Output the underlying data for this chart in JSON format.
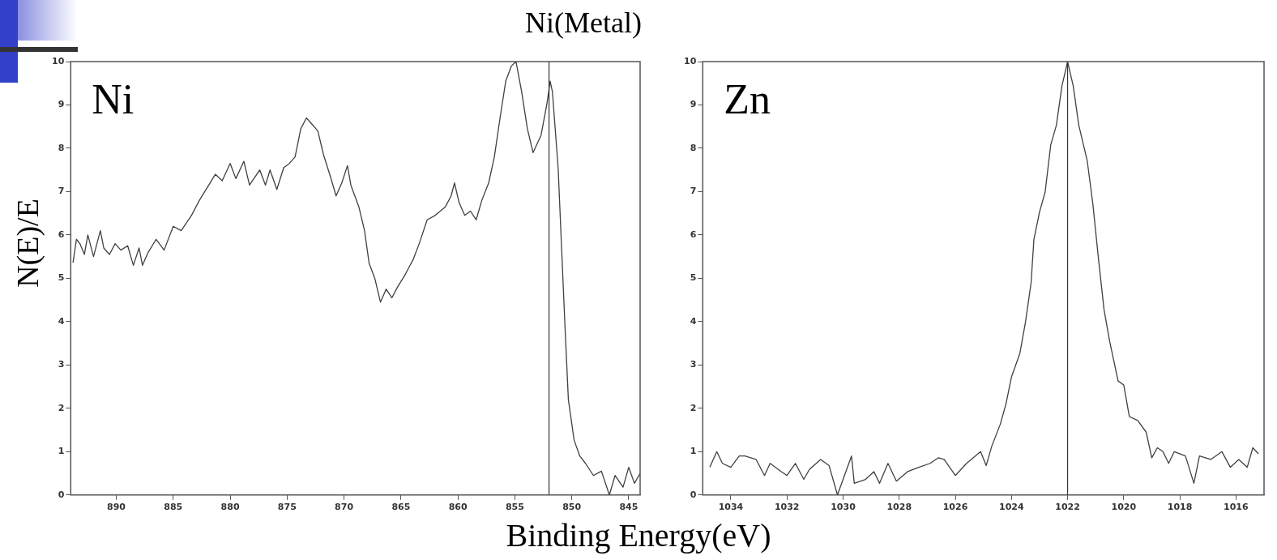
{
  "chart_data": [
    {
      "type": "line",
      "title": "Ni",
      "xlabel": "Binding Energy(eV)",
      "ylabel": "N(E)/E",
      "annotations": [
        "Ni(Metal)"
      ],
      "xlim": [
        894,
        844
      ],
      "xticks": [
        890,
        885,
        880,
        875,
        870,
        865,
        860,
        855,
        850,
        845
      ],
      "ylim": [
        0,
        10
      ],
      "yticks": [
        0,
        1,
        2,
        3,
        4,
        5,
        6,
        7,
        8,
        9,
        10
      ],
      "grid": false,
      "legend": false,
      "marker": "none",
      "ref_lines": [
        {
          "axis": "x",
          "value": 852,
          "color": "#333333"
        }
      ],
      "series": [
        {
          "color": "#404040",
          "x": [
            893.8,
            893.5,
            893.2,
            892.8,
            892.5,
            892.0,
            891.4,
            891.1,
            890.6,
            890.1,
            889.6,
            889.0,
            888.5,
            888.0,
            887.7,
            887.2,
            886.5,
            885.8,
            885.0,
            884.3,
            883.4,
            882.7,
            882.0,
            881.3,
            880.7,
            880.0,
            879.5,
            878.8,
            878.3,
            877.4,
            876.9,
            876.5,
            875.9,
            875.3,
            874.8,
            874.3,
            873.8,
            873.3,
            872.8,
            872.3,
            871.8,
            871.2,
            870.7,
            870.2,
            869.7,
            869.4,
            868.7,
            868.2,
            867.8,
            867.3,
            866.8,
            866.3,
            865.8,
            865.3,
            864.6,
            863.9,
            863.4,
            862.7,
            862.0,
            861.1,
            860.6,
            860.3,
            859.9,
            859.4,
            858.9,
            858.4,
            857.9,
            857.3,
            856.8,
            856.3,
            855.8,
            855.3,
            854.9,
            854.4,
            853.9,
            853.4,
            852.7,
            852.2,
            851.9,
            851.7,
            851.2,
            850.6,
            850.3,
            849.8,
            849.3,
            848.8,
            848.1,
            847.4,
            846.7,
            846.2,
            845.5,
            845.0,
            844.5,
            844.0
          ],
          "values": [
            5.36,
            5.9,
            5.8,
            5.55,
            6.0,
            5.5,
            6.1,
            5.7,
            5.55,
            5.8,
            5.65,
            5.75,
            5.3,
            5.7,
            5.3,
            5.6,
            5.9,
            5.65,
            6.2,
            6.1,
            6.45,
            6.8,
            7.1,
            7.4,
            7.25,
            7.65,
            7.3,
            7.7,
            7.15,
            7.5,
            7.15,
            7.5,
            7.05,
            7.55,
            7.65,
            7.8,
            8.45,
            8.7,
            8.55,
            8.4,
            7.85,
            7.35,
            6.9,
            7.2,
            7.6,
            7.15,
            6.65,
            6.1,
            5.35,
            5.0,
            4.45,
            4.75,
            4.55,
            4.8,
            5.1,
            5.45,
            5.8,
            6.35,
            6.45,
            6.65,
            6.9,
            7.2,
            6.75,
            6.45,
            6.55,
            6.35,
            6.8,
            7.2,
            7.8,
            8.7,
            9.55,
            9.9,
            10,
            9.3,
            8.45,
            7.9,
            8.3,
            9.0,
            9.55,
            9.3,
            7.55,
            3.9,
            2.2,
            1.27,
            0.9,
            0.73,
            0.45,
            0.55,
            0.0,
            0.45,
            0.18,
            0.64,
            0.27,
            0.5
          ]
        }
      ]
    },
    {
      "type": "line",
      "title": "Zn",
      "xlim": [
        1035,
        1015
      ],
      "xticks": [
        1034,
        1032,
        1030,
        1028,
        1026,
        1024,
        1022,
        1020,
        1018,
        1016
      ],
      "ylim": [
        0,
        10
      ],
      "yticks": [
        0,
        1,
        2,
        3,
        4,
        5,
        6,
        7,
        8,
        9,
        10
      ],
      "grid": false,
      "legend": false,
      "marker": "none",
      "ref_lines": [
        {
          "axis": "x",
          "value": 1022,
          "color": "#333333"
        }
      ],
      "series": [
        {
          "color": "#404040",
          "x": [
            1034.75,
            1034.5,
            1034.3,
            1034.0,
            1033.7,
            1033.5,
            1033.1,
            1032.8,
            1032.6,
            1032.2,
            1032.0,
            1031.7,
            1031.4,
            1031.2,
            1030.8,
            1030.5,
            1030.2,
            1030.0,
            1029.7,
            1029.6,
            1029.2,
            1028.9,
            1028.7,
            1028.4,
            1028.1,
            1027.7,
            1027.3,
            1026.9,
            1026.6,
            1026.4,
            1026.0,
            1025.6,
            1025.1,
            1024.9,
            1024.7,
            1024.4,
            1024.2,
            1024.0,
            1023.7,
            1023.5,
            1023.3,
            1023.2,
            1023.0,
            1022.8,
            1022.6,
            1022.4,
            1022.2,
            1022.0,
            1021.8,
            1021.6,
            1021.3,
            1021.1,
            1020.9,
            1020.7,
            1020.5,
            1020.2,
            1020.0,
            1019.8,
            1019.5,
            1019.2,
            1019.0,
            1018.8,
            1018.6,
            1018.4,
            1018.2,
            1017.8,
            1017.5,
            1017.3,
            1016.9,
            1016.5,
            1016.2,
            1015.9,
            1015.6,
            1015.4,
            1015.2
          ],
          "values": [
            0.64,
            1.0,
            0.73,
            0.64,
            0.9,
            0.9,
            0.82,
            0.45,
            0.73,
            0.54,
            0.45,
            0.73,
            0.36,
            0.59,
            0.82,
            0.68,
            0.0,
            0.36,
            0.9,
            0.27,
            0.36,
            0.54,
            0.27,
            0.73,
            0.32,
            0.54,
            0.64,
            0.73,
            0.86,
            0.82,
            0.45,
            0.73,
            1.0,
            0.68,
            1.13,
            1.63,
            2.09,
            2.72,
            3.27,
            3.99,
            4.9,
            5.9,
            6.53,
            6.99,
            8.08,
            8.53,
            9.44,
            10,
            9.44,
            8.53,
            7.71,
            6.72,
            5.45,
            4.27,
            3.54,
            2.63,
            2.54,
            1.81,
            1.72,
            1.45,
            0.86,
            1.09,
            1.0,
            0.73,
            1.0,
            0.9,
            0.27,
            0.9,
            0.82,
            1.0,
            0.64,
            0.82,
            0.64,
            1.09,
            0.95
          ]
        }
      ]
    }
  ]
}
